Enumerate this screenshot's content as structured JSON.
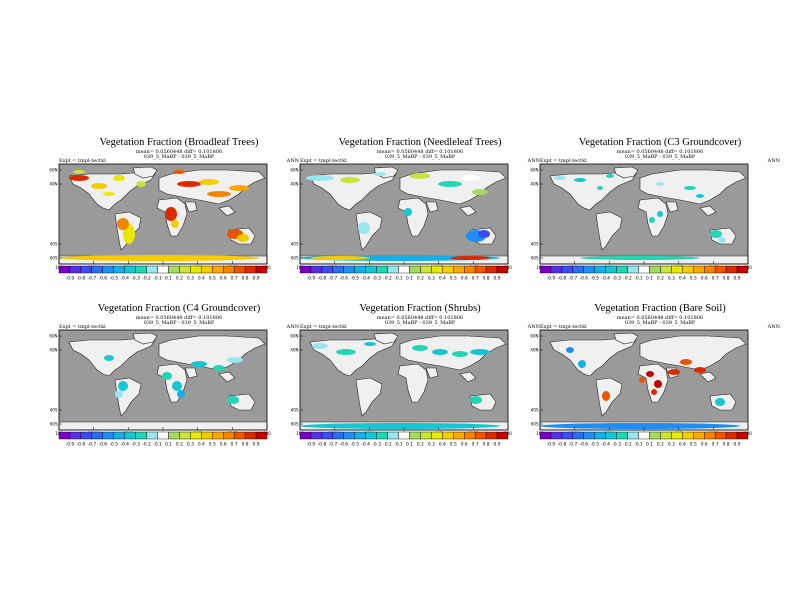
{
  "panels": [
    {
      "title": "Vegetation Fraction (Broadleaf Trees)",
      "subtitle1": "mean= 0.0560448 diff= 0.101806",
      "subtitle2": "039_5_MaBP - 039_5_MaBP",
      "expt": "Expt = tmpl-tectkl",
      "period": "ANN"
    },
    {
      "title": "Vegetation Fraction (Needleleaf Trees)",
      "subtitle1": "mean= 0.0560448 diff= 0.101806",
      "subtitle2": "039_5_MaBP - 039_5_MaBP",
      "expt": "Expt = tmpl-tectkl",
      "period": "ANN"
    },
    {
      "title": "Vegetation Fraction (C3 Groundcover)",
      "subtitle1": "mean= 0.0560448 diff= 0.101806",
      "subtitle2": "039_5_MaBP - 039_5_MaBP",
      "expt": "Expt = tmpl-tectkl",
      "period": "ANN"
    },
    {
      "title": "Vegetation Fraction (C4 Groundcover)",
      "subtitle1": "mean= 0.0560448 diff= 0.101806",
      "subtitle2": "039_5_MaBP - 039_5_MaBP",
      "expt": "Expt = tmpl-tectkl",
      "period": "ANN"
    },
    {
      "title": "Vegetation Fraction (Shrubs)",
      "subtitle1": "mean= 0.0560448 diff= 0.101806",
      "subtitle2": "039_5_MaBP - 039_5_MaBP",
      "expt": "Expt = tmpl-tectkl",
      "period": "ANN"
    },
    {
      "title": "Vegetation Fraction (Bare Soil)",
      "subtitle1": "mean= 0.0560448 diff= 0.101806",
      "subtitle2": "039_5_MaBP - 039_5_MaBP",
      "expt": "Expt = tmpl-tectkl",
      "period": "ANN"
    }
  ],
  "lat_labels": [
    "60N",
    "40N",
    "40S",
    "60S"
  ],
  "lon_labels": [
    "180",
    "120W",
    "60W",
    "0",
    "60E",
    "120E",
    "180"
  ],
  "colorbar": {
    "labels": [
      "-0.9",
      "-0.8",
      "-0.7",
      "-0.6",
      "-0.5",
      "-0.4",
      "-0.3",
      "-0.2",
      "-0.1",
      "0.1",
      "0.2",
      "0.3",
      "0.4",
      "0.5",
      "0.6",
      "0.7",
      "0.8",
      "0.9"
    ],
    "colors": [
      "#7a00c8",
      "#5a2ee6",
      "#3c4cf2",
      "#2c6df0",
      "#1e8ef2",
      "#18aee6",
      "#16c6d2",
      "#22d6b4",
      "#9ae6ee",
      "#ffffff",
      "#a6d862",
      "#c8e43a",
      "#e8e800",
      "#f4cc00",
      "#f8a800",
      "#f48400",
      "#ec5400",
      "#dc2a00",
      "#c40000"
    ]
  },
  "colors": {
    "ocean": "#9a9a9a",
    "land": "#f0f0f0"
  }
}
